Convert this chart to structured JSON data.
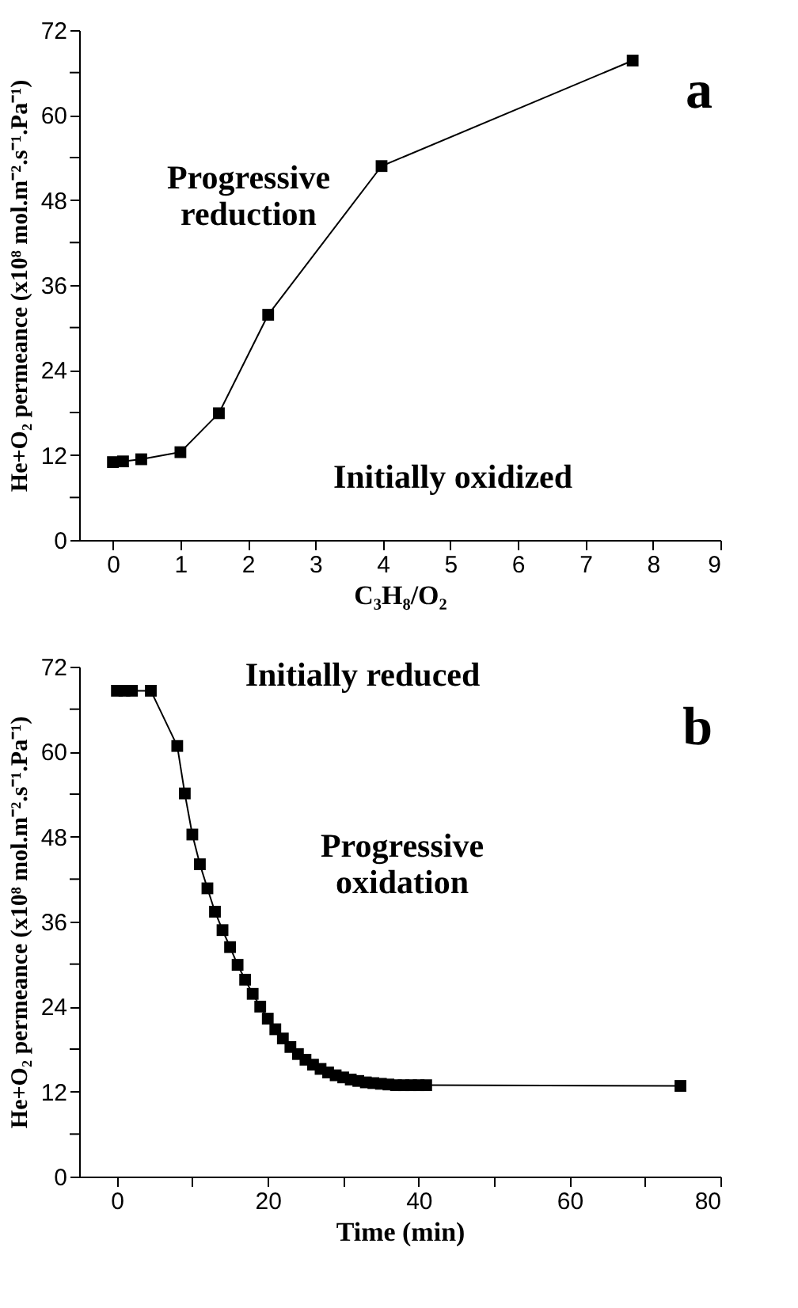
{
  "chart_data": [
    {
      "type": "line",
      "xlabel": "C₃H₈/O₂",
      "ylabel": "He+O₂ permeance (x10⁸ mol.m⁻².s⁻¹.Pa⁻¹)",
      "marker": "square",
      "line_style": "solid",
      "grid": false,
      "x": [
        0,
        0.15,
        0.42,
        1.0,
        1.57,
        2.3,
        3.98,
        7.7
      ],
      "series": [
        {
          "color": "#000000",
          "values": [
            11,
            11.1,
            11.4,
            12.4,
            17.9,
            31.8,
            52.8,
            67.7
          ]
        }
      ],
      "xlim": [
        -0.5,
        9
      ],
      "xticks": [
        0,
        1,
        2,
        3,
        4,
        5,
        6,
        7,
        8,
        9
      ],
      "ylim": [
        0,
        72
      ],
      "yticks": [
        0,
        {
          "value": 6,
          "label": null
        },
        12,
        {
          "value": 18,
          "label": null
        },
        24,
        {
          "value": 30,
          "label": null
        },
        36,
        {
          "value": 42,
          "label": null
        },
        48,
        {
          "value": 54,
          "label": null
        },
        60,
        {
          "value": 66,
          "label": null
        },
        72
      ],
      "annotations": [
        "a",
        "Progressive\nreduction",
        "Initially oxidized"
      ]
    },
    {
      "type": "line",
      "xlabel": "Time (min)",
      "ylabel": "He+O₂ permeance (x10⁸ mol.m⁻².s⁻¹.Pa⁻¹)",
      "marker": "square",
      "line_style": "solid",
      "grid": false,
      "x": [
        0,
        1,
        2,
        4.5,
        8,
        9,
        10,
        11,
        12,
        13,
        14,
        15,
        16,
        17,
        18,
        19,
        20,
        21,
        22,
        23,
        24,
        25,
        26,
        27,
        28,
        29,
        30,
        31,
        32,
        33,
        34,
        35,
        36,
        37,
        38,
        39,
        40,
        41,
        74.7
      ],
      "series": [
        {
          "color": "#000000",
          "values": [
            68.6,
            68.6,
            68.6,
            68.6,
            60.8,
            54.1,
            48.3,
            44.1,
            40.7,
            37.4,
            34.8,
            32.4,
            29.9,
            27.8,
            25.8,
            24.0,
            22.3,
            20.8,
            19.5,
            18.3,
            17.3,
            16.5,
            15.8,
            15.2,
            14.7,
            14.3,
            14.0,
            13.7,
            13.5,
            13.3,
            13.2,
            13.1,
            13.0,
            12.9,
            12.9,
            12.9,
            12.9,
            12.9,
            12.8
          ]
        }
      ],
      "xlim": [
        -5,
        80
      ],
      "xticks": [
        0,
        {
          "value": 10,
          "label": null
        },
        20,
        {
          "value": 30,
          "label": null
        },
        40,
        {
          "value": 50,
          "label": null
        },
        60,
        {
          "value": 70,
          "label": null
        },
        80
      ],
      "ylim": [
        0,
        72
      ],
      "yticks": [
        0,
        {
          "value": 6,
          "label": null
        },
        12,
        {
          "value": 18,
          "label": null
        },
        24,
        {
          "value": 30,
          "label": null
        },
        36,
        {
          "value": 42,
          "label": null
        },
        48,
        {
          "value": 54,
          "label": null
        },
        60,
        {
          "value": 66,
          "label": null
        },
        72
      ],
      "annotations": [
        "b",
        "Initially reduced",
        "Progressive\noxidation"
      ]
    }
  ]
}
